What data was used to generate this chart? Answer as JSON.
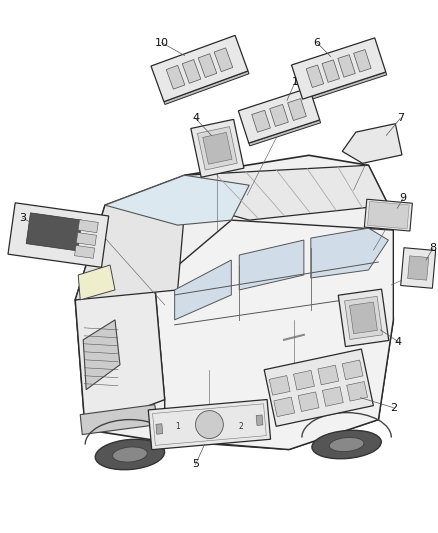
{
  "bg_color": "#ffffff",
  "fig_width": 4.38,
  "fig_height": 5.33,
  "dpi": 100,
  "van_color": "#f0f0f0",
  "van_edge": "#2a2a2a",
  "switch_face": "#e8e8e8",
  "switch_edge": "#2a2a2a",
  "button_face": "#d0d0d0",
  "button_edge": "#555555",
  "line_color": "#444444",
  "label_color": "#111111",
  "label_fontsize": 7.5
}
